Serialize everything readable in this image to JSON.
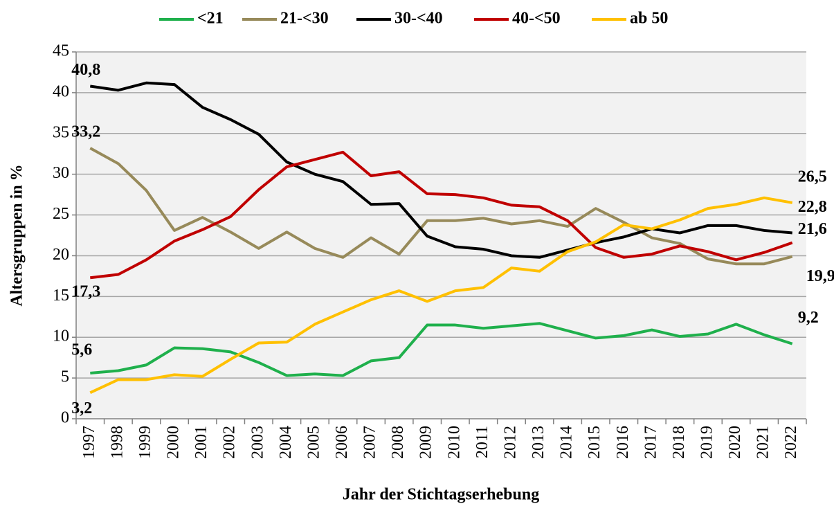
{
  "chart_data": {
    "type": "line",
    "x_label": "Jahr der Stichtagserhebung",
    "y_label": "Altersgruppen in %",
    "categories": [
      "1997",
      "1998",
      "1999",
      "2000",
      "2001",
      "2002",
      "2003",
      "2004",
      "2005",
      "2006",
      "2007",
      "2008",
      "2009",
      "2010",
      "2011",
      "2012",
      "2013",
      "2014",
      "2015",
      "2016",
      "2017",
      "2018",
      "2019",
      "2020",
      "2021",
      "2022"
    ],
    "ylim": [
      0,
      45
    ],
    "yticks": [
      0,
      5,
      10,
      15,
      20,
      25,
      30,
      35,
      40,
      45
    ],
    "grid": true,
    "legend": "top",
    "series": [
      {
        "name": "<21",
        "color": "#1fb04c",
        "values": [
          5.6,
          5.9,
          6.6,
          8.7,
          8.6,
          8.2,
          6.9,
          5.3,
          5.5,
          5.3,
          7.1,
          7.5,
          11.5,
          11.5,
          11.1,
          11.4,
          11.7,
          10.8,
          9.9,
          10.2,
          10.9,
          10.1,
          10.4,
          11.6,
          10.3,
          9.2
        ],
        "value_labels": [
          "5,6",
          null,
          null,
          null,
          null,
          null,
          null,
          null,
          null,
          null,
          null,
          null,
          null,
          null,
          null,
          null,
          null,
          null,
          null,
          null,
          null,
          null,
          null,
          null,
          null,
          "9,2"
        ]
      },
      {
        "name": "21-<30",
        "color": "#978a5a",
        "values": [
          33.2,
          31.3,
          28.0,
          23.1,
          24.7,
          22.9,
          20.9,
          22.9,
          20.9,
          19.8,
          22.2,
          20.2,
          24.3,
          24.3,
          24.6,
          23.9,
          24.3,
          23.6,
          25.8,
          24.1,
          22.2,
          21.5,
          19.6,
          19.0,
          19.0,
          19.9
        ],
        "value_labels": [
          "33,2",
          null,
          null,
          null,
          null,
          null,
          null,
          null,
          null,
          null,
          null,
          null,
          null,
          null,
          null,
          null,
          null,
          null,
          null,
          null,
          null,
          null,
          null,
          null,
          null,
          "19,9"
        ]
      },
      {
        "name": "30-<40",
        "color": "#000000",
        "values": [
          40.8,
          40.3,
          41.2,
          41.0,
          38.2,
          36.7,
          34.9,
          31.5,
          30.0,
          29.1,
          26.3,
          26.4,
          22.4,
          21.1,
          20.8,
          20.0,
          19.8,
          20.7,
          21.6,
          22.3,
          23.3,
          22.8,
          23.7,
          23.7,
          23.1,
          22.8
        ],
        "value_labels": [
          "40,8",
          null,
          null,
          null,
          null,
          null,
          null,
          null,
          null,
          null,
          null,
          null,
          null,
          null,
          null,
          null,
          null,
          null,
          null,
          null,
          null,
          null,
          null,
          null,
          null,
          "22,8"
        ]
      },
      {
        "name": "40-<50",
        "color": "#c00000",
        "values": [
          17.3,
          17.7,
          19.5,
          21.8,
          23.2,
          24.8,
          28.1,
          30.9,
          31.8,
          32.7,
          29.8,
          30.3,
          27.6,
          27.5,
          27.1,
          26.2,
          26.0,
          24.3,
          21.0,
          19.8,
          20.2,
          21.2,
          20.5,
          19.5,
          20.4,
          21.6
        ],
        "value_labels": [
          "17,3",
          null,
          null,
          null,
          null,
          null,
          null,
          null,
          null,
          null,
          null,
          null,
          null,
          null,
          null,
          null,
          null,
          null,
          null,
          null,
          null,
          null,
          null,
          null,
          null,
          "21,6"
        ]
      },
      {
        "name": "ab 50",
        "color": "#ffc000",
        "values": [
          3.2,
          4.8,
          4.8,
          5.4,
          5.2,
          7.3,
          9.3,
          9.4,
          11.6,
          13.1,
          14.6,
          15.7,
          14.4,
          15.7,
          16.1,
          18.5,
          18.1,
          20.5,
          21.7,
          23.8,
          23.3,
          24.4,
          25.8,
          26.3,
          27.1,
          26.5
        ],
        "value_labels": [
          "3,2",
          null,
          null,
          null,
          null,
          null,
          null,
          null,
          null,
          null,
          null,
          null,
          null,
          null,
          null,
          null,
          null,
          null,
          null,
          null,
          null,
          null,
          null,
          null,
          null,
          "26,5"
        ]
      }
    ]
  }
}
